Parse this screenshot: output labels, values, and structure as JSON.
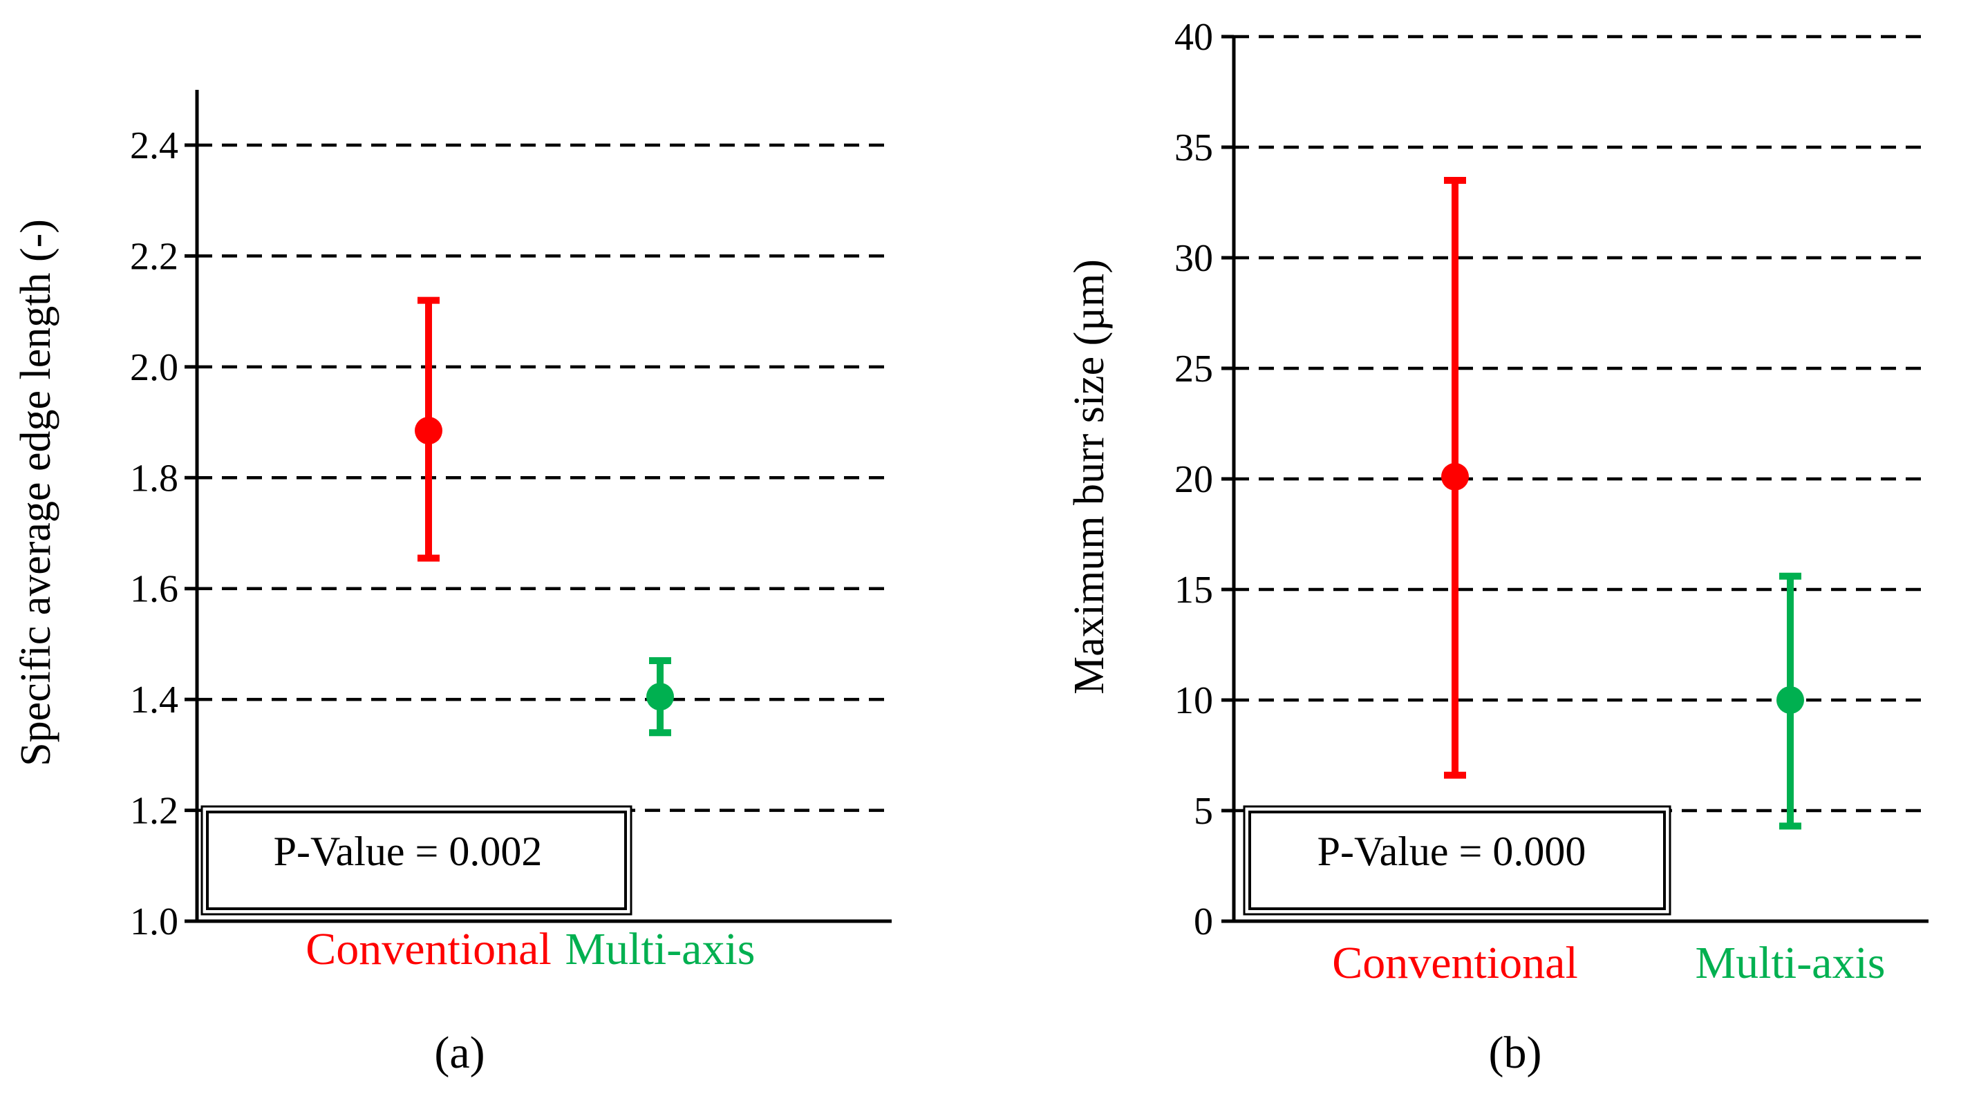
{
  "chart_data": [
    {
      "type": "errorbar",
      "panel_label": "(a)",
      "ylabel": "Specific average edge length (-)",
      "ylim": [
        1.0,
        2.5
      ],
      "yticks": [
        1.0,
        1.2,
        1.4,
        1.6,
        1.8,
        2.0,
        2.2,
        2.4
      ],
      "ytick_labels": [
        "1.0",
        "1.2",
        "1.4",
        "1.6",
        "1.8",
        "2.0",
        "2.2",
        "2.4"
      ],
      "grid": true,
      "categories": [
        "Conventional",
        "Multi-axis"
      ],
      "colors": [
        "#ff0000",
        "#00b050"
      ],
      "points": [
        {
          "category": "Conventional",
          "mean": 1.885,
          "lower": 1.655,
          "upper": 2.12
        },
        {
          "category": "Multi-axis",
          "mean": 1.405,
          "lower": 1.34,
          "upper": 1.47
        }
      ],
      "annotation": "P-Value = 0.002"
    },
    {
      "type": "errorbar",
      "panel_label": "(b)",
      "ylabel": "Maximum burr size (µm)",
      "ylim": [
        0,
        40
      ],
      "yticks": [
        0,
        5,
        10,
        15,
        20,
        25,
        30,
        35,
        40
      ],
      "ytick_labels": [
        "0",
        "5",
        "10",
        "15",
        "20",
        "25",
        "30",
        "35",
        "40"
      ],
      "grid": true,
      "categories": [
        "Conventional",
        "Multi-axis"
      ],
      "colors": [
        "#ff0000",
        "#00b050"
      ],
      "points": [
        {
          "category": "Conventional",
          "mean": 20.1,
          "lower": 6.6,
          "upper": 33.5
        },
        {
          "category": "Multi-axis",
          "mean": 10.0,
          "lower": 4.3,
          "upper": 15.6
        }
      ],
      "annotation": "P-Value = 0.000"
    }
  ]
}
